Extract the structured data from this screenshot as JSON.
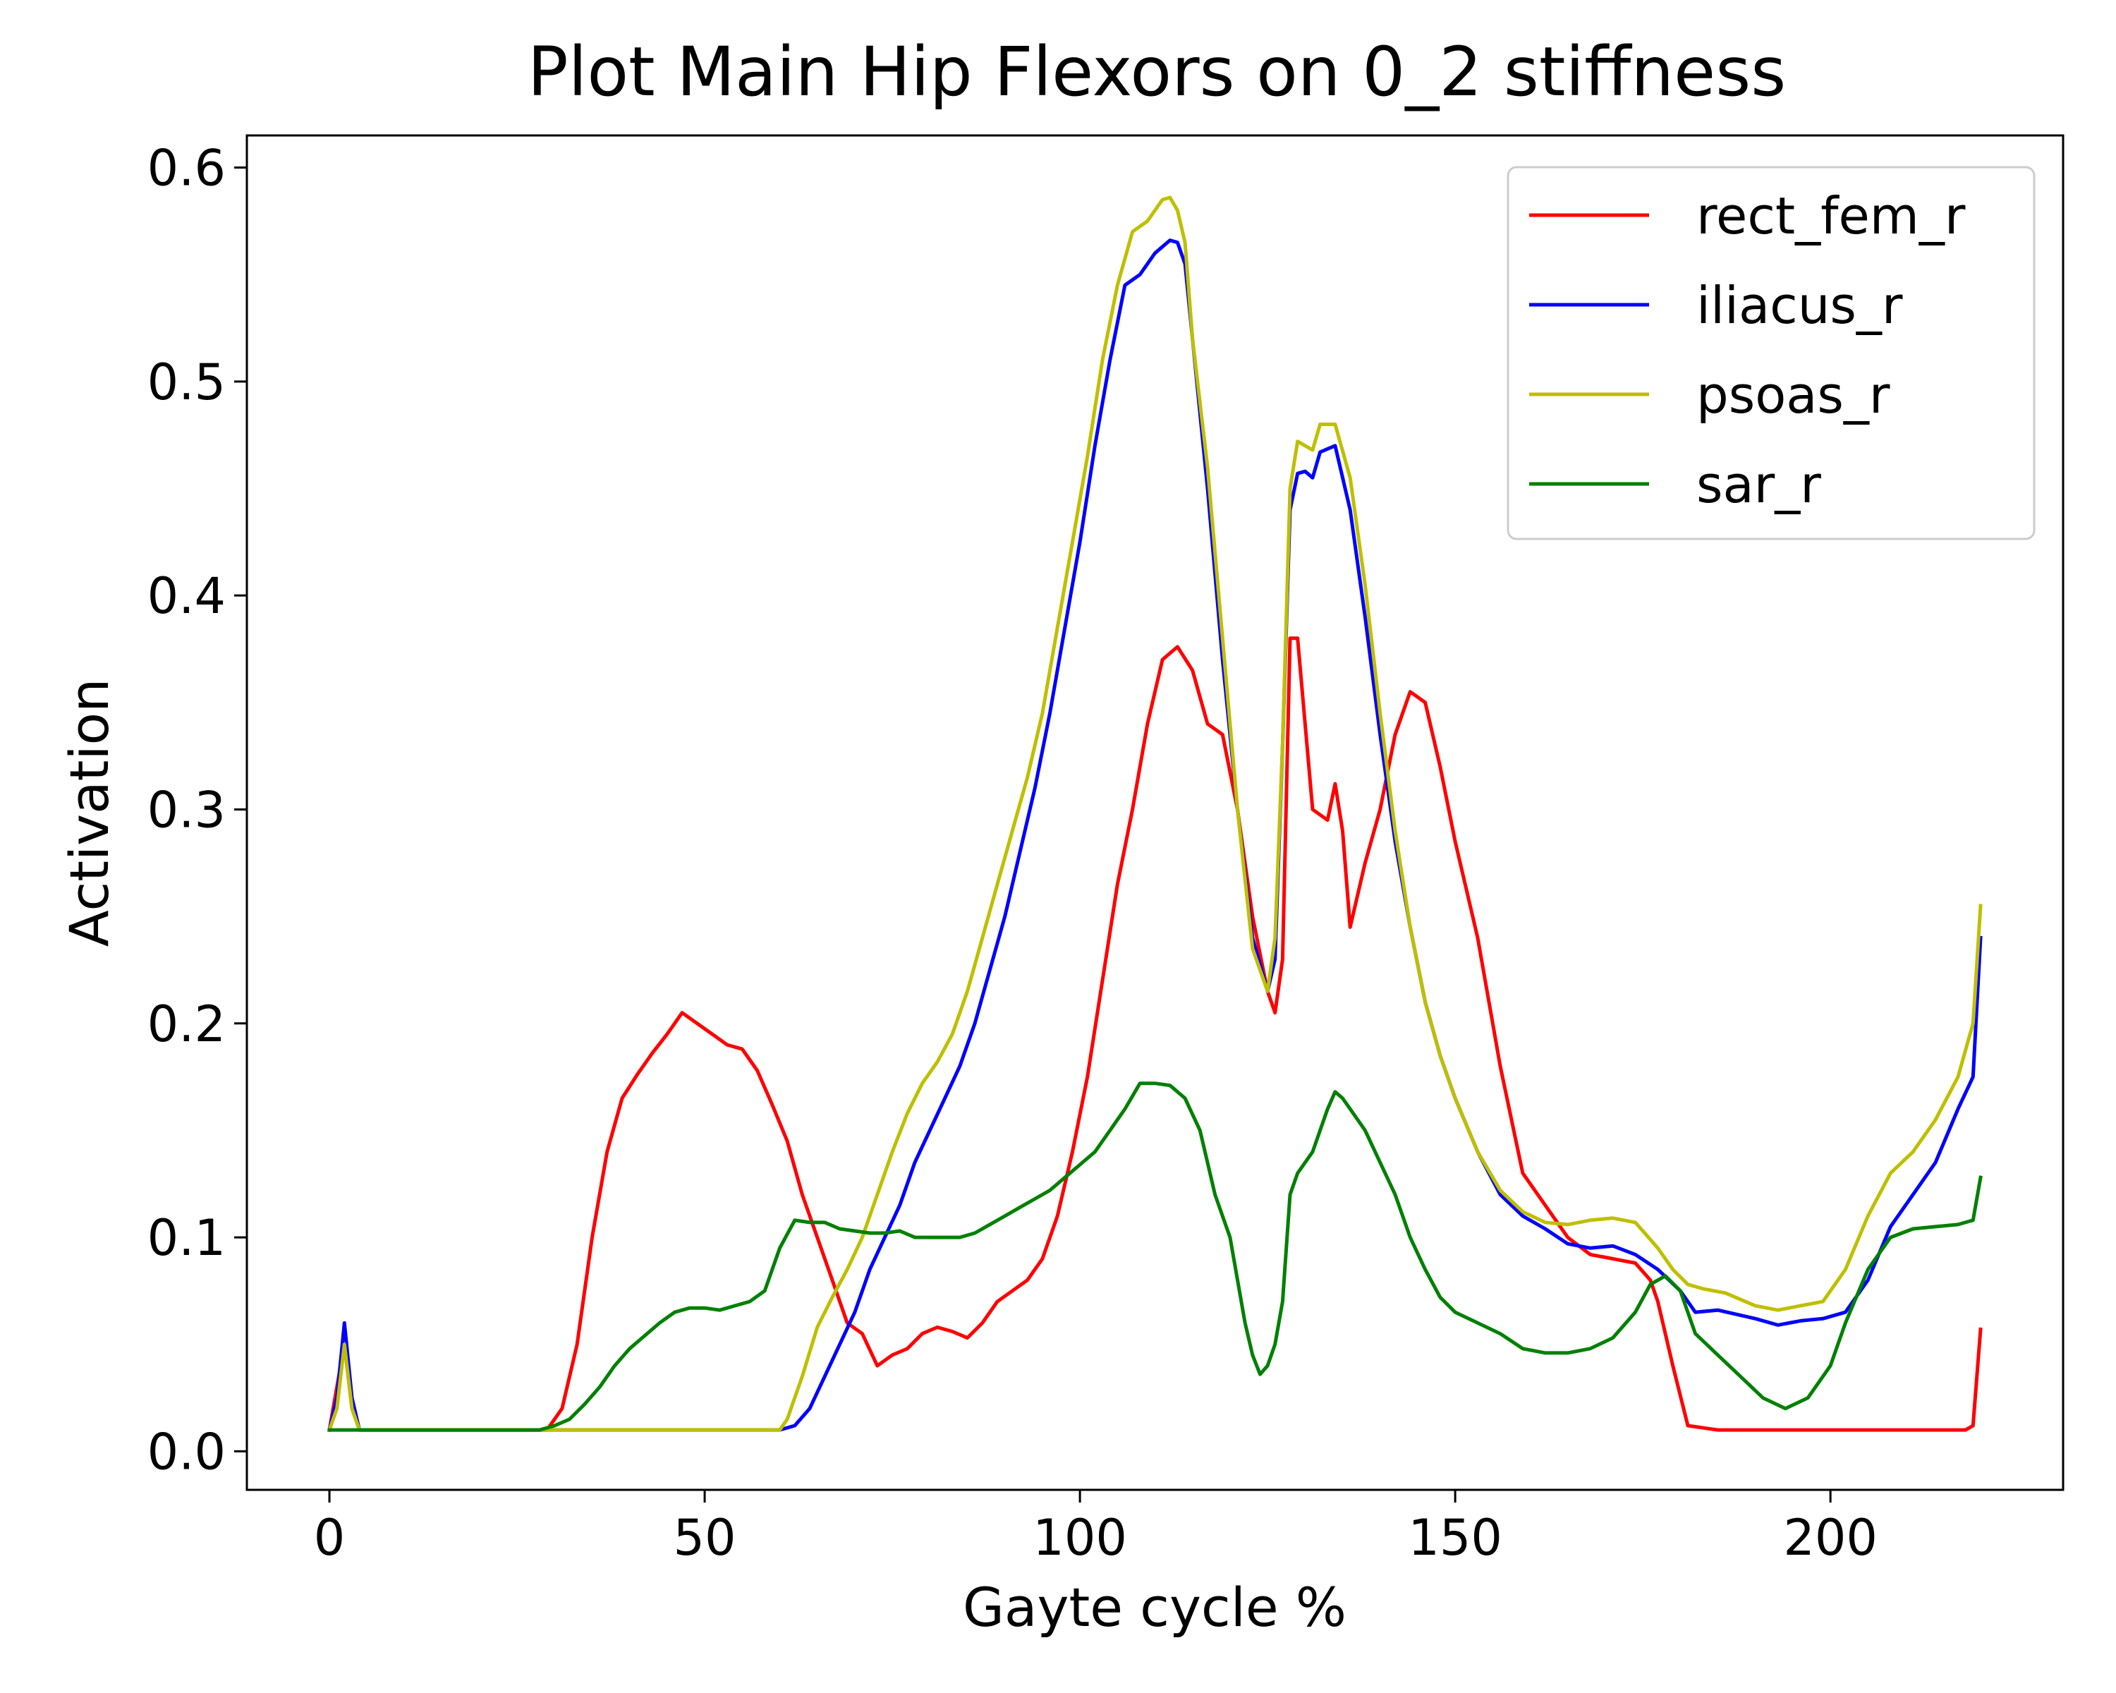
{
  "chart_data": {
    "type": "line",
    "title": "Plot Main Hip Flexors on 0_2 stiffness",
    "xlabel": "Gayte cycle %",
    "ylabel": "Activation",
    "xlim": [
      -11,
      231
    ],
    "ylim": [
      -0.018,
      0.615
    ],
    "xticks": [
      0,
      50,
      100,
      150,
      200
    ],
    "xtick_labels": [
      "0",
      "50",
      "100",
      "150",
      "200"
    ],
    "yticks": [
      0.0,
      0.1,
      0.2,
      0.3,
      0.4,
      0.5,
      0.6
    ],
    "ytick_labels": [
      "0.0",
      "0.1",
      "0.2",
      "0.3",
      "0.4",
      "0.5",
      "0.6"
    ],
    "grid": false,
    "legend_position": "top-right",
    "series": [
      {
        "name": "rect_fem_r",
        "color": "#ff0000",
        "x": [
          0,
          2,
          3,
          4,
          10,
          20,
          29,
          31,
          33,
          35,
          37,
          39,
          41,
          43,
          45,
          47,
          49,
          51,
          53,
          55,
          57,
          59,
          61,
          63,
          65,
          67,
          69,
          71,
          73,
          75,
          77,
          79,
          81,
          83,
          85,
          87,
          89,
          91,
          93,
          95,
          97,
          99,
          101,
          103,
          105,
          107,
          109,
          111,
          113,
          115,
          117,
          119,
          121,
          123,
          125,
          126,
          127,
          128,
          129,
          131,
          133,
          134,
          135,
          136,
          138,
          140,
          142,
          144,
          146,
          148,
          150,
          153,
          156,
          159,
          162,
          165,
          168,
          171,
          174,
          176,
          177,
          179,
          181,
          185,
          190,
          200,
          210,
          218,
          219,
          220
        ],
        "y": [
          0.01,
          0.05,
          0.02,
          0.01,
          0.01,
          0.01,
          0.01,
          0.02,
          0.05,
          0.1,
          0.14,
          0.165,
          0.176,
          0.186,
          0.195,
          0.205,
          0.2,
          0.195,
          0.19,
          0.188,
          0.178,
          0.162,
          0.145,
          0.12,
          0.1,
          0.08,
          0.06,
          0.055,
          0.04,
          0.045,
          0.048,
          0.055,
          0.058,
          0.056,
          0.053,
          0.06,
          0.07,
          0.075,
          0.08,
          0.09,
          0.11,
          0.14,
          0.175,
          0.22,
          0.265,
          0.3,
          0.34,
          0.37,
          0.376,
          0.365,
          0.34,
          0.335,
          0.3,
          0.25,
          0.215,
          0.205,
          0.23,
          0.38,
          0.38,
          0.3,
          0.295,
          0.312,
          0.29,
          0.245,
          0.275,
          0.3,
          0.335,
          0.355,
          0.35,
          0.32,
          0.285,
          0.24,
          0.18,
          0.13,
          0.115,
          0.1,
          0.092,
          0.09,
          0.088,
          0.08,
          0.07,
          0.04,
          0.012,
          0.01,
          0.01,
          0.01,
          0.01,
          0.01,
          0.012,
          0.057
        ]
      },
      {
        "name": "iliacus_r",
        "color": "#0000ff",
        "x": [
          0,
          1,
          2,
          3,
          4,
          10,
          20,
          30,
          40,
          50,
          60,
          62,
          64,
          66,
          68,
          70,
          72,
          74,
          76,
          78,
          80,
          82,
          84,
          86,
          88,
          90,
          92,
          94,
          96,
          98,
          100,
          102,
          104,
          106,
          108,
          110,
          112,
          113,
          114,
          115,
          117,
          119,
          121,
          123,
          125,
          126,
          127,
          128,
          129,
          130,
          131,
          132,
          134,
          136,
          138,
          140,
          142,
          144,
          146,
          148,
          150,
          153,
          156,
          159,
          162,
          165,
          168,
          171,
          174,
          177,
          180,
          182,
          185,
          190,
          193,
          196,
          199,
          202,
          205,
          208,
          211,
          214,
          217,
          219,
          220
        ],
        "y": [
          0.01,
          0.025,
          0.06,
          0.025,
          0.01,
          0.01,
          0.01,
          0.01,
          0.01,
          0.01,
          0.01,
          0.012,
          0.02,
          0.035,
          0.05,
          0.065,
          0.085,
          0.1,
          0.115,
          0.135,
          0.15,
          0.165,
          0.18,
          0.2,
          0.225,
          0.25,
          0.28,
          0.31,
          0.345,
          0.385,
          0.425,
          0.47,
          0.51,
          0.545,
          0.55,
          0.56,
          0.566,
          0.565,
          0.555,
          0.52,
          0.45,
          0.37,
          0.3,
          0.24,
          0.215,
          0.23,
          0.33,
          0.44,
          0.457,
          0.458,
          0.455,
          0.467,
          0.47,
          0.44,
          0.39,
          0.335,
          0.285,
          0.245,
          0.21,
          0.185,
          0.165,
          0.14,
          0.12,
          0.11,
          0.104,
          0.097,
          0.095,
          0.096,
          0.092,
          0.085,
          0.075,
          0.065,
          0.066,
          0.062,
          0.059,
          0.061,
          0.062,
          0.065,
          0.08,
          0.105,
          0.12,
          0.135,
          0.16,
          0.175,
          0.24
        ]
      },
      {
        "name": "psoas_r",
        "color": "#bfbf00",
        "x": [
          0,
          1,
          2,
          3,
          4,
          10,
          20,
          30,
          40,
          50,
          60,
          61,
          63,
          65,
          67,
          69,
          71,
          73,
          75,
          77,
          79,
          81,
          83,
          85,
          87,
          89,
          91,
          93,
          95,
          97,
          99,
          101,
          103,
          105,
          107,
          109,
          111,
          112,
          113,
          114,
          115,
          117,
          119,
          121,
          123,
          125,
          126,
          127,
          128,
          129,
          130,
          131,
          132,
          134,
          136,
          138,
          140,
          142,
          144,
          146,
          148,
          150,
          153,
          156,
          159,
          162,
          165,
          168,
          171,
          174,
          177,
          179,
          181,
          183,
          186,
          190,
          193,
          196,
          199,
          202,
          205,
          208,
          211,
          214,
          217,
          219,
          220
        ],
        "y": [
          0.01,
          0.02,
          0.05,
          0.02,
          0.01,
          0.01,
          0.01,
          0.01,
          0.01,
          0.01,
          0.01,
          0.015,
          0.035,
          0.058,
          0.072,
          0.085,
          0.1,
          0.12,
          0.14,
          0.158,
          0.172,
          0.182,
          0.195,
          0.215,
          0.24,
          0.265,
          0.29,
          0.315,
          0.345,
          0.385,
          0.425,
          0.465,
          0.51,
          0.545,
          0.57,
          0.575,
          0.585,
          0.586,
          0.58,
          0.565,
          0.52,
          0.46,
          0.38,
          0.3,
          0.235,
          0.215,
          0.24,
          0.33,
          0.45,
          0.472,
          0.47,
          0.468,
          0.48,
          0.48,
          0.455,
          0.405,
          0.345,
          0.29,
          0.245,
          0.21,
          0.185,
          0.165,
          0.14,
          0.122,
          0.112,
          0.107,
          0.106,
          0.108,
          0.109,
          0.107,
          0.095,
          0.085,
          0.078,
          0.076,
          0.074,
          0.068,
          0.066,
          0.068,
          0.07,
          0.085,
          0.11,
          0.13,
          0.14,
          0.155,
          0.175,
          0.2,
          0.255
        ]
      },
      {
        "name": "sar_r",
        "color": "#008000",
        "x": [
          0,
          10,
          20,
          28,
          30,
          32,
          34,
          36,
          38,
          40,
          42,
          44,
          46,
          48,
          50,
          52,
          54,
          56,
          58,
          60,
          62,
          64,
          66,
          68,
          70,
          72,
          74,
          76,
          78,
          80,
          82,
          84,
          86,
          88,
          90,
          92,
          94,
          96,
          98,
          100,
          102,
          104,
          106,
          108,
          110,
          112,
          114,
          116,
          118,
          120,
          122,
          123,
          124,
          125,
          126,
          127,
          128,
          129,
          131,
          133,
          134,
          135,
          136,
          138,
          140,
          142,
          144,
          146,
          148,
          150,
          153,
          156,
          159,
          162,
          165,
          168,
          171,
          174,
          176,
          178,
          180,
          182,
          185,
          188,
          191,
          194,
          197,
          200,
          202,
          205,
          208,
          211,
          214,
          217,
          219,
          220
        ],
        "y": [
          0.01,
          0.01,
          0.01,
          0.01,
          0.012,
          0.015,
          0.022,
          0.03,
          0.04,
          0.048,
          0.054,
          0.06,
          0.065,
          0.067,
          0.067,
          0.066,
          0.068,
          0.07,
          0.075,
          0.095,
          0.108,
          0.107,
          0.107,
          0.104,
          0.103,
          0.102,
          0.102,
          0.103,
          0.1,
          0.1,
          0.1,
          0.1,
          0.102,
          0.106,
          0.11,
          0.114,
          0.118,
          0.122,
          0.128,
          0.134,
          0.14,
          0.15,
          0.16,
          0.172,
          0.172,
          0.171,
          0.165,
          0.15,
          0.12,
          0.1,
          0.06,
          0.045,
          0.036,
          0.04,
          0.05,
          0.07,
          0.12,
          0.13,
          0.14,
          0.16,
          0.168,
          0.165,
          0.16,
          0.15,
          0.135,
          0.12,
          0.1,
          0.085,
          0.072,
          0.065,
          0.06,
          0.055,
          0.048,
          0.046,
          0.046,
          0.048,
          0.053,
          0.065,
          0.078,
          0.082,
          0.075,
          0.055,
          0.045,
          0.035,
          0.025,
          0.02,
          0.025,
          0.04,
          0.06,
          0.085,
          0.1,
          0.104,
          0.105,
          0.106,
          0.108,
          0.128
        ]
      }
    ]
  }
}
